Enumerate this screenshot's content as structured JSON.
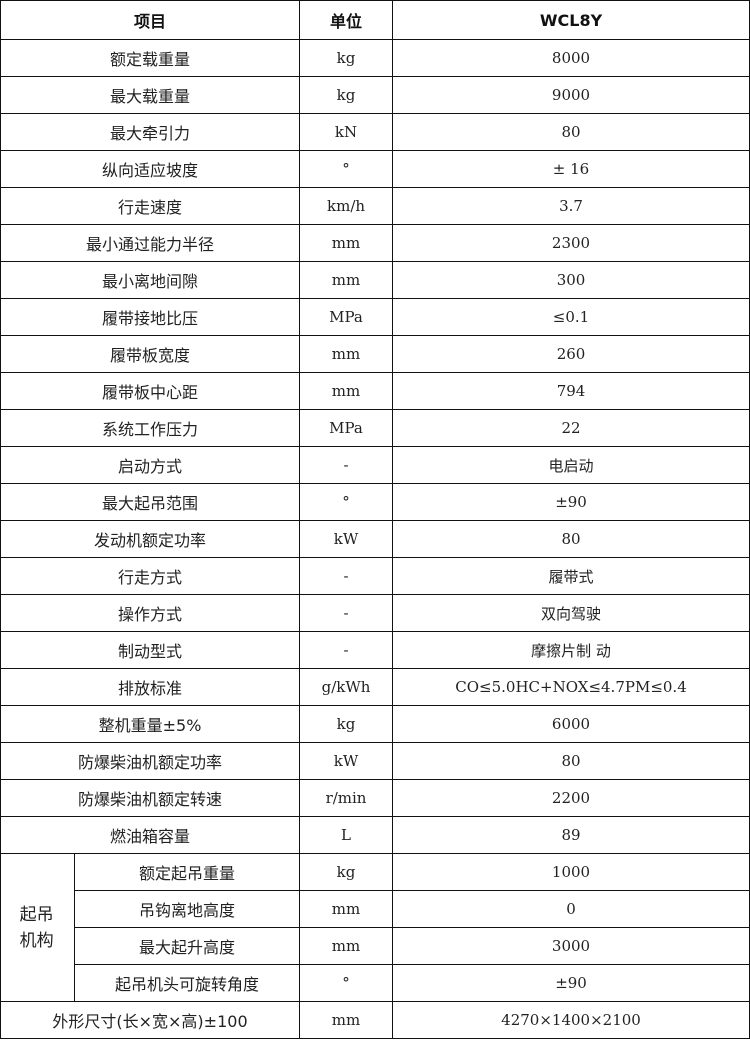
{
  "header": {
    "item": "项目",
    "unit": "单位",
    "model": "WCL8Y"
  },
  "rows": [
    {
      "item": "额定载重量",
      "unit": "kg",
      "value": "8000"
    },
    {
      "item": "最大载重量",
      "unit": "kg",
      "value": "9000"
    },
    {
      "item": "最大牵引力",
      "unit": "kN",
      "value": "80"
    },
    {
      "item": "纵向适应坡度",
      "unit": "°",
      "value": "± 16"
    },
    {
      "item": "行走速度",
      "unit": "km/h",
      "value": "3.7"
    },
    {
      "item": "最小通过能力半径",
      "unit": "mm",
      "value": "2300"
    },
    {
      "item": "最小离地间隙",
      "unit": "mm",
      "value": "300"
    },
    {
      "item": "履带接地比压",
      "unit": "MPa",
      "value": "≤0.1"
    },
    {
      "item": "履带板宽度",
      "unit": "mm",
      "value": "260"
    },
    {
      "item": "履带板中心距",
      "unit": "mm",
      "value": "794"
    },
    {
      "item": "系统工作压力",
      "unit": "MPa",
      "value": "22"
    },
    {
      "item": "启动方式",
      "unit": "-",
      "value": "电启动"
    },
    {
      "item": "最大起吊范围",
      "unit": "°",
      "value": "±90"
    },
    {
      "item": "发动机额定功率",
      "unit": "kW",
      "value": "80"
    },
    {
      "item": "行走方式",
      "unit": "-",
      "value": "履带式"
    },
    {
      "item": "操作方式",
      "unit": "-",
      "value": "双向驾驶"
    },
    {
      "item": "制动型式",
      "unit": "-",
      "value": "摩擦片制 动"
    },
    {
      "item": "排放标准",
      "unit": "g/kWh",
      "value": "CO≤5.0HC+NOX≤4.7PM≤0.4"
    },
    {
      "item": "整机重量±5%",
      "unit": "kg",
      "value": "6000"
    },
    {
      "item": "防爆柴油机额定功率",
      "unit": "kW",
      "value": "80"
    },
    {
      "item": "防爆柴油机额定转速",
      "unit": "r/min",
      "value": "2200"
    },
    {
      "item": "燃油箱容量",
      "unit": "L",
      "value": "89"
    }
  ],
  "group": {
    "label": "起吊机构",
    "rows": [
      {
        "item": "额定起吊重量",
        "unit": "kg",
        "value": "1000"
      },
      {
        "item": "吊钩离地高度",
        "unit": "mm",
        "value": "0"
      },
      {
        "item": "最大起升高度",
        "unit": "mm",
        "value": "3000"
      },
      {
        "item": "起吊机头可旋转角度",
        "unit": "°",
        "value": "±90"
      }
    ]
  },
  "last": {
    "item": "外形尺寸(长×宽×高)±100",
    "unit": "mm",
    "value": "4270×1400×2100"
  }
}
